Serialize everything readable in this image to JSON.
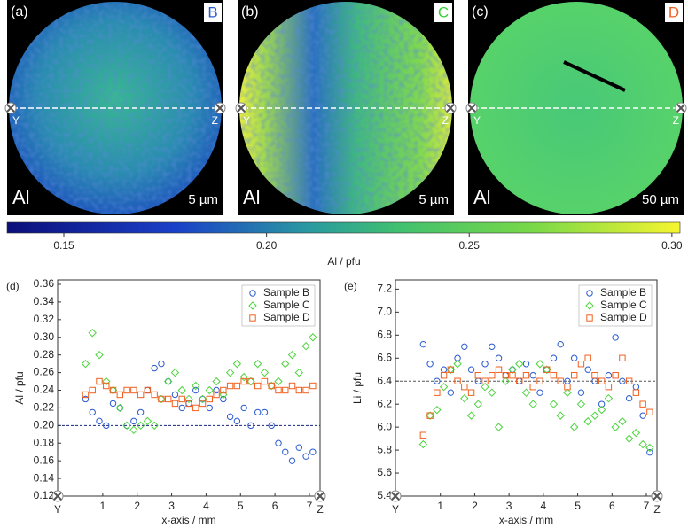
{
  "maps": [
    {
      "label": "(a)",
      "sample": "B",
      "sample_color": "#2a5bd0",
      "element": "Al",
      "scale": "5 µm"
    },
    {
      "label": "(b)",
      "sample": "C",
      "sample_color": "#38d038",
      "element": "Al",
      "scale": "5 µm"
    },
    {
      "label": "(c)",
      "sample": "D",
      "sample_color": "#f06020",
      "element": "Al",
      "scale": "50 µm"
    }
  ],
  "y_marker": "Y",
  "z_marker": "Z",
  "colorbar": {
    "label": "Al / pfu",
    "clim": [
      0.136,
      0.302
    ],
    "ticks": [
      0.15,
      {
        "value": 0.2,
        "label": "0.20"
      },
      0.25,
      {
        "value": 0.3,
        "label": "0.30"
      }
    ]
  },
  "chart_data": [
    {
      "type": "scatter",
      "panel": "(d)",
      "y_label": "Al / pfu",
      "x_label": "x-axis / mm",
      "xlim": [
        -0.31,
        7.31
      ],
      "xticks": [
        1,
        2,
        3,
        4,
        5,
        6,
        7
      ],
      "ylim": [
        0.12,
        0.365
      ],
      "yticks": [
        0.12,
        0.14,
        0.16,
        0.18,
        {
          "value": 0.2,
          "label": "0.20"
        },
        0.22,
        0.24,
        0.26,
        0.28,
        {
          "value": 0.3,
          "label": "0.30"
        },
        0.32,
        0.34,
        0.36
      ],
      "hline": {
        "value": 0.2,
        "color": "#1a237e"
      },
      "legend": "top-right",
      "x": [
        0.5,
        0.7,
        0.9,
        1.1,
        1.3,
        1.5,
        1.7,
        1.9,
        2.1,
        2.3,
        2.5,
        2.7,
        2.9,
        3.1,
        3.3,
        3.5,
        3.7,
        3.9,
        4.1,
        4.3,
        4.5,
        4.7,
        4.9,
        5.1,
        5.3,
        5.5,
        5.7,
        5.9,
        6.1,
        6.3,
        6.5,
        6.7,
        6.9,
        7.1
      ],
      "series": [
        {
          "name": "Sample B",
          "color": "#2a5bd0",
          "marker": "circle",
          "values": [
            0.23,
            0.215,
            0.205,
            0.2,
            0.225,
            0.22,
            0.2,
            0.205,
            0.215,
            0.24,
            0.265,
            0.27,
            0.25,
            0.235,
            0.22,
            0.225,
            0.24,
            0.23,
            0.22,
            0.24,
            0.23,
            0.21,
            0.205,
            0.22,
            0.2,
            0.215,
            0.215,
            0.2,
            0.18,
            0.17,
            0.16,
            0.175,
            0.165,
            0.17
          ]
        },
        {
          "name": "Sample C",
          "color": "#4cd43c",
          "marker": "diamond",
          "values": [
            0.27,
            0.305,
            0.28,
            0.25,
            0.24,
            0.22,
            0.2,
            0.195,
            0.2,
            0.205,
            0.2,
            0.23,
            0.25,
            0.26,
            0.24,
            0.23,
            0.245,
            0.23,
            0.24,
            0.25,
            0.235,
            0.26,
            0.27,
            0.255,
            0.25,
            0.27,
            0.26,
            0.245,
            0.25,
            0.27,
            0.28,
            0.26,
            0.29,
            0.3
          ]
        },
        {
          "name": "Sample D",
          "color": "#f06020",
          "marker": "square",
          "values": [
            0.235,
            0.24,
            0.25,
            0.245,
            0.24,
            0.235,
            0.24,
            0.24,
            0.235,
            0.24,
            0.235,
            0.23,
            0.23,
            0.225,
            0.23,
            0.225,
            0.22,
            0.225,
            0.23,
            0.235,
            0.24,
            0.245,
            0.245,
            0.25,
            0.25,
            0.245,
            0.25,
            0.245,
            0.24,
            0.24,
            0.245,
            0.24,
            0.24,
            0.245
          ]
        }
      ]
    },
    {
      "type": "scatter",
      "panel": "(e)",
      "y_label": "Li / pfu",
      "x_label": "x-axis / mm",
      "xlim": [
        -0.31,
        7.31
      ],
      "xticks": [
        1,
        2,
        3,
        4,
        5,
        6,
        7
      ],
      "ylim": [
        5.4,
        7.28
      ],
      "yticks": [
        5.4,
        5.6,
        5.8,
        {
          "value": 6,
          "label": "6.0"
        },
        6.2,
        6.4,
        6.6,
        6.8,
        {
          "value": 7,
          "label": "7.0"
        },
        7.2
      ],
      "hline": {
        "value": 6.4,
        "color": "#555555"
      },
      "legend": "top-right",
      "x": [
        0.5,
        0.7,
        0.9,
        1.1,
        1.3,
        1.5,
        1.7,
        1.9,
        2.1,
        2.3,
        2.5,
        2.7,
        2.9,
        3.1,
        3.3,
        3.5,
        3.7,
        3.9,
        4.1,
        4.3,
        4.5,
        4.7,
        4.9,
        5.1,
        5.3,
        5.5,
        5.7,
        5.9,
        6.1,
        6.3,
        6.5,
        6.7,
        6.9,
        7.1
      ],
      "series": [
        {
          "name": "Sample B",
          "color": "#2a5bd0",
          "marker": "circle",
          "values": [
            6.72,
            6.55,
            6.4,
            6.5,
            6.3,
            6.6,
            6.7,
            6.5,
            6.4,
            6.55,
            6.7,
            6.6,
            6.45,
            6.5,
            6.4,
            6.55,
            6.45,
            6.3,
            6.5,
            6.6,
            6.72,
            6.4,
            6.6,
            6.3,
            6.5,
            6.4,
            6.2,
            6.45,
            6.78,
            6.4,
            6.25,
            6.35,
            6.1,
            5.78
          ]
        },
        {
          "name": "Sample C",
          "color": "#4cd43c",
          "marker": "diamond",
          "values": [
            5.85,
            6.1,
            6.15,
            6.35,
            6.5,
            6.55,
            6.25,
            6.1,
            6.2,
            6.35,
            6.3,
            6.0,
            6.4,
            6.5,
            6.55,
            6.3,
            6.2,
            6.55,
            6.5,
            6.2,
            6.1,
            6.3,
            6.0,
            6.2,
            6.05,
            6.1,
            6.15,
            6.25,
            6.0,
            6.05,
            5.9,
            5.95,
            5.85,
            5.82
          ]
        },
        {
          "name": "Sample D",
          "color": "#f06020",
          "marker": "square",
          "values": [
            5.93,
            6.1,
            6.3,
            6.45,
            6.5,
            6.4,
            6.35,
            6.3,
            6.45,
            6.4,
            6.45,
            6.5,
            6.45,
            6.45,
            6.4,
            6.45,
            6.35,
            6.4,
            6.5,
            6.45,
            6.4,
            6.35,
            6.45,
            6.55,
            6.6,
            6.45,
            6.4,
            6.35,
            6.45,
            6.6,
            6.4,
            6.3,
            6.2,
            6.13
          ]
        }
      ]
    }
  ]
}
